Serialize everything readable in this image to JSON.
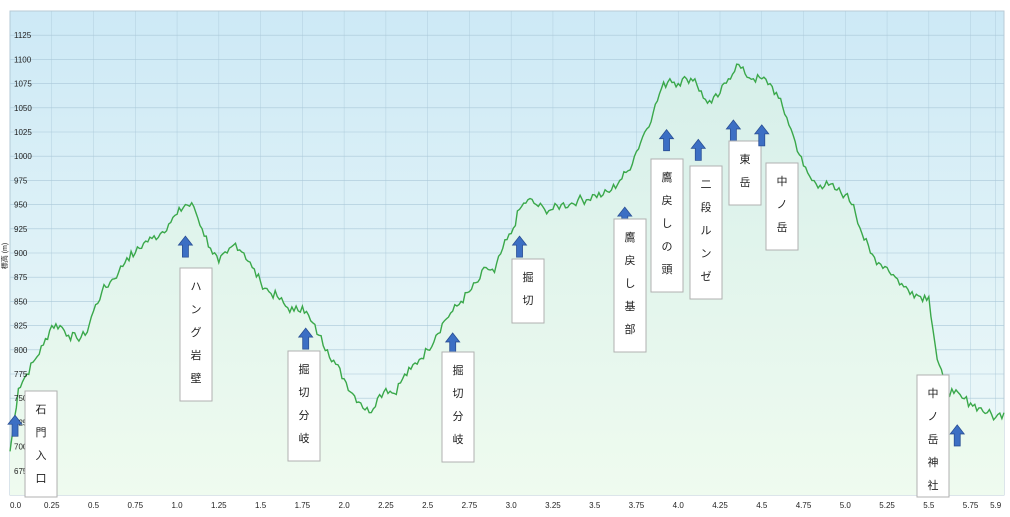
{
  "chart_data": {
    "type": "area",
    "title": "",
    "ylabel": "標高 (m)",
    "xlabel": "",
    "xlim": [
      0,
      5.95
    ],
    "ylim": [
      650,
      1150
    ],
    "x_ticks": [
      0.0,
      0.25,
      0.5,
      0.75,
      1.0,
      1.25,
      1.5,
      1.75,
      2.0,
      2.25,
      2.5,
      2.75,
      3.0,
      3.25,
      3.5,
      3.75,
      4.0,
      4.25,
      4.5,
      4.75,
      5.0,
      5.25,
      5.5,
      5.75,
      5.9
    ],
    "x_tick_labels": [
      "0.0",
      "0.25",
      "0.5",
      "0.75",
      "1.0",
      "1.25",
      "1.5",
      "1.75",
      "2.0",
      "2.25",
      "2.5",
      "2.75",
      "3.0",
      "3.25",
      "3.5",
      "3.75",
      "4.0",
      "4.25",
      "4.5",
      "4.75",
      "5.0",
      "5.25",
      "5.5",
      "5.75",
      "5.9"
    ],
    "y_ticks": [
      675,
      700,
      725,
      750,
      775,
      800,
      825,
      850,
      875,
      900,
      925,
      950,
      975,
      1000,
      1025,
      1050,
      1075,
      1100,
      1125
    ],
    "y_tick_labels": [
      "675",
      "700",
      "725",
      "750",
      "775",
      "800",
      "825",
      "850",
      "875",
      "900",
      "925",
      "950",
      "975",
      "1000",
      "1025",
      "1050",
      "1075",
      "1100",
      "1125"
    ],
    "grid": true,
    "colors": {
      "line": "#3aa84a",
      "fill_top": "#d2edf7",
      "fill_bottom": "#eefaee",
      "bg_top": "#cfeaf6",
      "bg_bottom": "#eef9f6",
      "arrow": "#3c6fc4",
      "grid": "#aac8d8"
    },
    "series": [
      {
        "x": [
          0.0,
          0.05,
          0.1,
          0.15,
          0.2,
          0.25,
          0.3,
          0.35,
          0.4,
          0.45,
          0.5,
          0.55,
          0.6,
          0.65,
          0.7,
          0.75,
          0.8,
          0.85,
          0.9,
          0.95,
          1.0,
          1.05,
          1.1,
          1.15,
          1.2,
          1.25,
          1.3,
          1.35,
          1.4,
          1.45,
          1.5,
          1.55,
          1.6,
          1.65,
          1.7,
          1.75,
          1.8,
          1.85,
          1.9,
          1.95,
          2.0,
          2.05,
          2.1,
          2.15,
          2.2,
          2.25,
          2.3,
          2.35,
          2.4,
          2.45,
          2.5,
          2.55,
          2.6,
          2.65,
          2.7,
          2.75,
          2.8,
          2.85,
          2.9,
          2.95,
          3.0,
          3.05,
          3.1,
          3.15,
          3.2,
          3.25,
          3.3,
          3.35,
          3.4,
          3.45,
          3.5,
          3.55,
          3.6,
          3.65,
          3.7,
          3.75,
          3.8,
          3.85,
          3.9,
          3.95,
          4.0,
          4.05,
          4.1,
          4.15,
          4.2,
          4.25,
          4.3,
          4.35,
          4.4,
          4.45,
          4.5,
          4.55,
          4.6,
          4.65,
          4.7,
          4.75,
          4.8,
          4.85,
          4.9,
          4.95,
          5.0,
          5.05,
          5.1,
          5.15,
          5.2,
          5.25,
          5.3,
          5.35,
          5.4,
          5.45,
          5.5,
          5.55,
          5.6,
          5.65,
          5.7,
          5.75,
          5.8,
          5.85,
          5.9,
          5.95
        ],
        "y": [
          695,
          760,
          775,
          790,
          805,
          825,
          825,
          815,
          812,
          815,
          840,
          860,
          870,
          880,
          895,
          900,
          910,
          915,
          920,
          930,
          940,
          950,
          948,
          925,
          905,
          890,
          900,
          910,
          900,
          885,
          870,
          860,
          855,
          845,
          840,
          845,
          830,
          815,
          800,
          785,
          770,
          755,
          745,
          735,
          750,
          760,
          755,
          770,
          780,
          790,
          800,
          815,
          830,
          840,
          850,
          860,
          870,
          885,
          880,
          905,
          920,
          945,
          955,
          950,
          945,
          945,
          950,
          950,
          955,
          955,
          960,
          960,
          965,
          975,
          985,
          1005,
          1025,
          1045,
          1070,
          1080,
          1075,
          1080,
          1080,
          1060,
          1055,
          1065,
          1080,
          1095,
          1085,
          1080,
          1080,
          1075,
          1060,
          1040,
          1015,
          990,
          975,
          970,
          970,
          965,
          960,
          950,
          920,
          900,
          890,
          885,
          875,
          865,
          860,
          855,
          855,
          790,
          760,
          755,
          750,
          745,
          740,
          735,
          730,
          735
        ]
      }
    ],
    "annotations": [
      {
        "lines": [
          "石",
          "門",
          "入",
          "口"
        ],
        "x": 0.03,
        "arrow_y": 720
      },
      {
        "lines": [
          "ハ",
          "ン",
          "グ",
          "岩",
          "壁"
        ],
        "x": 1.05,
        "arrow_y": 905
      },
      {
        "lines": [
          "掘",
          "切",
          "分",
          "岐"
        ],
        "x": 1.77,
        "arrow_y": 810
      },
      {
        "lines": [
          "掘",
          "切",
          "分",
          "岐"
        ],
        "x": 2.65,
        "arrow_y": 805
      },
      {
        "lines": [
          "掘",
          "切"
        ],
        "x": 3.05,
        "arrow_y": 905
      },
      {
        "lines": [
          "鷹",
          "戻",
          "し",
          "基",
          "部"
        ],
        "x": 3.68,
        "arrow_y": 935
      },
      {
        "lines": [
          "鷹",
          "戻",
          "し",
          "の",
          "頭"
        ],
        "x": 3.93,
        "arrow_y": 1015
      },
      {
        "lines": [
          "二",
          "段",
          "ル",
          "ン",
          "ゼ"
        ],
        "x": 4.12,
        "arrow_y": 1005
      },
      {
        "lines": [
          "東",
          "岳"
        ],
        "x": 4.33,
        "arrow_y": 1025
      },
      {
        "lines": [
          "中",
          "ノ",
          "岳"
        ],
        "x": 4.5,
        "arrow_y": 1020
      },
      {
        "lines": [
          "中",
          "ノ",
          "岳",
          "神",
          "社"
        ],
        "x": 5.67,
        "arrow_y": 710
      }
    ]
  }
}
